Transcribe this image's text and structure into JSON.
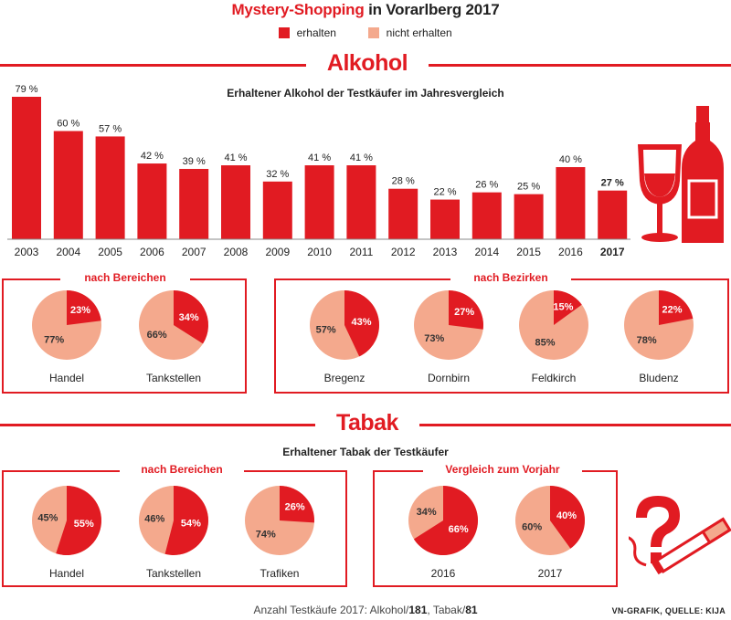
{
  "header": {
    "title_red": "Mystery-Shopping",
    "title_rest": "in Vorarlberg 2017",
    "legend_received": "erhalten",
    "legend_not_received": "nicht erhalten"
  },
  "colors": {
    "received": "#e11b22",
    "not_received": "#f4a98d",
    "text": "#222222"
  },
  "alkohol": {
    "heading": "Alkohol",
    "subtitle": "Erhaltener Alkohol der Testkäufer im Jahresvergleich",
    "areas_label": "nach Bereichen",
    "districts_label": "nach Bezirken",
    "icons": [
      "wine-glass-icon",
      "wine-bottle-icon"
    ]
  },
  "tabak": {
    "heading": "Tabak",
    "subtitle": "Erhaltener Tabak der Testkäufer",
    "areas_label": "nach Bereichen",
    "compare_label": "Vergleich zum Vorjahr",
    "icons": [
      "question-mark-icon",
      "cigarette-icon"
    ]
  },
  "footer": {
    "prefix": "Anzahl Testkäufe 2017: Alkohol/",
    "alkohol_count": "181",
    "middle": ", Tabak/",
    "tabak_count": "81",
    "credit": "VN-GRAFIK, QUELLE: KIJA"
  },
  "chart_data": [
    {
      "type": "bar",
      "title": "Erhaltener Alkohol der Testkäufer im Jahresvergleich",
      "categories": [
        "2003",
        "2004",
        "2005",
        "2006",
        "2007",
        "2008",
        "2009",
        "2010",
        "2011",
        "2012",
        "2013",
        "2014",
        "2015",
        "2016",
        "2017"
      ],
      "values": [
        79,
        60,
        57,
        42,
        39,
        41,
        32,
        41,
        41,
        28,
        22,
        26,
        25,
        40,
        27
      ],
      "value_labels": [
        "79 %",
        "60 %",
        "57 %",
        "42 %",
        "39 %",
        "41 %",
        "32 %",
        "41 %",
        "41 %",
        "28 %",
        "22 %",
        "26 %",
        "25 %",
        "40 %",
        "27 %"
      ],
      "highlight": "2017",
      "ylim": [
        0,
        80
      ],
      "grid": false
    },
    {
      "type": "pie",
      "group": "alkohol_bereiche",
      "pies": [
        {
          "label": "Handel",
          "received": 23,
          "not_received": 77,
          "received_label": "23%",
          "not_received_label": "77%"
        },
        {
          "label": "Tankstellen",
          "received": 34,
          "not_received": 66,
          "received_label": "34%",
          "not_received_label": "66%"
        }
      ]
    },
    {
      "type": "pie",
      "group": "alkohol_bezirke",
      "pies": [
        {
          "label": "Bregenz",
          "received": 43,
          "not_received": 57,
          "received_label": "43%",
          "not_received_label": "57%"
        },
        {
          "label": "Dornbirn",
          "received": 27,
          "not_received": 73,
          "received_label": "27%",
          "not_received_label": "73%"
        },
        {
          "label": "Feldkirch",
          "received": 15,
          "not_received": 85,
          "received_label": "15%",
          "not_received_label": "85%"
        },
        {
          "label": "Bludenz",
          "received": 22,
          "not_received": 78,
          "received_label": "22%",
          "not_received_label": "78%"
        }
      ]
    },
    {
      "type": "pie",
      "group": "tabak_bereiche",
      "pies": [
        {
          "label": "Handel",
          "received": 55,
          "not_received": 45,
          "received_label": "55%",
          "not_received_label": "45%"
        },
        {
          "label": "Tankstellen",
          "received": 54,
          "not_received": 46,
          "received_label": "54%",
          "not_received_label": "46%"
        },
        {
          "label": "Trafiken",
          "received": 26,
          "not_received": 74,
          "received_label": "26%",
          "not_received_label": "74%"
        }
      ]
    },
    {
      "type": "pie",
      "group": "tabak_vorjahr",
      "pies": [
        {
          "label": "2016",
          "received": 66,
          "not_received": 34,
          "received_label": "66%",
          "not_received_label": "34%"
        },
        {
          "label": "2017",
          "received": 40,
          "not_received": 60,
          "received_label": "40%",
          "not_received_label": "60%"
        }
      ]
    }
  ]
}
